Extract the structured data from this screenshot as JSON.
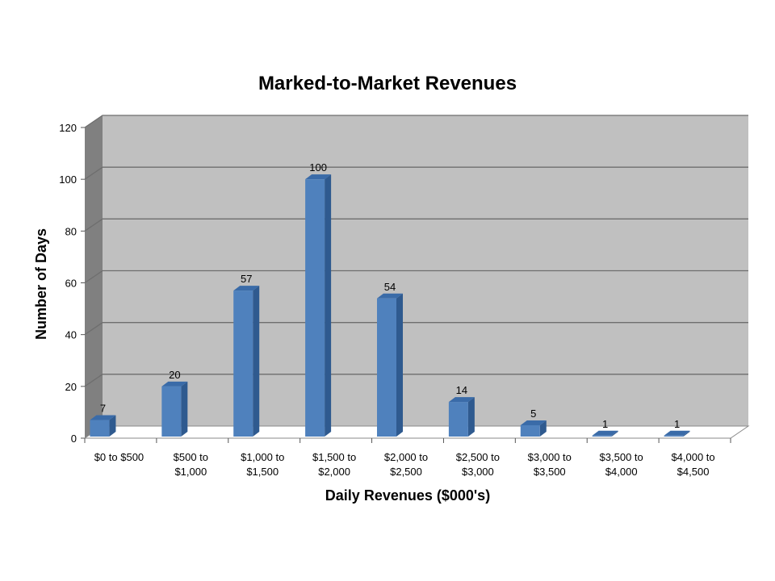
{
  "chart_data": {
    "type": "bar",
    "title": "Marked-to-Market Revenues",
    "xlabel": "Daily Revenues ($000's)",
    "ylabel": "Number of Days",
    "categories": [
      [
        "$0 to $500"
      ],
      [
        "$500 to",
        "$1,000"
      ],
      [
        "$1,000 to",
        "$1,500"
      ],
      [
        "$1,500 to",
        "$2,000"
      ],
      [
        "$2,000 to",
        "$2,500"
      ],
      [
        "$2,500 to",
        "$3,000"
      ],
      [
        "$3,000 to",
        "$3,500"
      ],
      [
        "$3,500 to",
        "$4,000"
      ],
      [
        "$4,000 to",
        "$4,500"
      ]
    ],
    "values": [
      7,
      20,
      57,
      100,
      54,
      14,
      5,
      1,
      1
    ],
    "ylim": [
      0,
      120
    ],
    "yticks": [
      0,
      20,
      40,
      60,
      80,
      100,
      120
    ],
    "data_labels": true,
    "grid": true,
    "style": "3d-column",
    "colors": {
      "bar_front": "#4F81BD",
      "bar_top": "#3A6BA8",
      "bar_side": "#2F5A8F",
      "back_wall": "#C0C0C0",
      "side_wall": "#808080",
      "floor": "#FFFFFF",
      "gridline": "#6E6E6E"
    }
  }
}
